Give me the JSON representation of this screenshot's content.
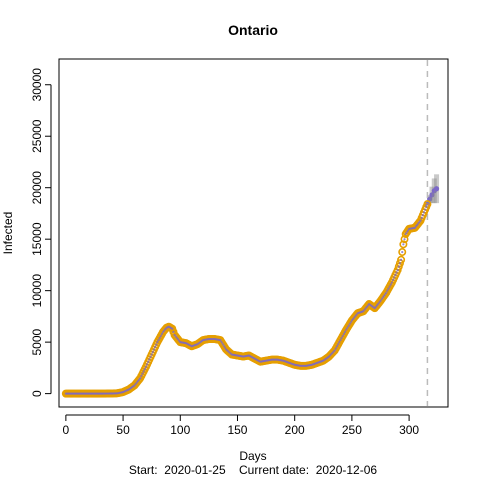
{
  "chart_data": {
    "type": "scatter",
    "title": "Ontario",
    "xlabel": "Days",
    "ylabel": "Infected",
    "footer": "Start:  2020-01-25    Current date:  2020-12-06",
    "xlim": [
      -6,
      334
    ],
    "ylim": [
      -1300,
      32500
    ],
    "x_ticks": [
      0,
      50,
      100,
      150,
      200,
      250,
      300
    ],
    "y_ticks": [
      0,
      5000,
      10000,
      15000,
      20000,
      25000,
      30000
    ],
    "current_day": 316,
    "colors": {
      "observed": "#E69F00",
      "fitted": "#7B68C8",
      "forecast": "#888888",
      "current_line": "#BBBBBB"
    },
    "observed": {
      "x": [
        0,
        10,
        20,
        30,
        40,
        45,
        50,
        55,
        60,
        65,
        70,
        75,
        80,
        85,
        88,
        90,
        93,
        95,
        100,
        105,
        110,
        115,
        120,
        125,
        130,
        135,
        140,
        145,
        150,
        155,
        160,
        165,
        170,
        175,
        180,
        185,
        190,
        195,
        200,
        205,
        210,
        215,
        220,
        225,
        230,
        235,
        240,
        245,
        250,
        255,
        260,
        265,
        270,
        275,
        280,
        285,
        290,
        293,
        295,
        297,
        300,
        305,
        310,
        313,
        316
      ],
      "y": [
        0,
        0,
        0,
        0,
        10,
        30,
        150,
        400,
        800,
        1500,
        2600,
        3800,
        5000,
        6000,
        6400,
        6500,
        6300,
        5700,
        5000,
        4900,
        4600,
        4800,
        5200,
        5300,
        5300,
        5200,
        4300,
        3800,
        3700,
        3600,
        3700,
        3400,
        3100,
        3200,
        3300,
        3300,
        3200,
        3000,
        2800,
        2700,
        2700,
        2800,
        3000,
        3200,
        3600,
        4200,
        5200,
        6200,
        7100,
        7800,
        8000,
        8700,
        8300,
        9000,
        9800,
        10800,
        12000,
        13000,
        14500,
        15500,
        16000,
        16100,
        16800,
        17600,
        18400
      ]
    },
    "forecast": {
      "x": [
        316,
        318,
        320,
        322,
        324
      ],
      "y": [
        18400,
        18900,
        19300,
        19700,
        19900
      ],
      "spread": [
        0,
        400,
        800,
        1200,
        1400
      ]
    }
  }
}
